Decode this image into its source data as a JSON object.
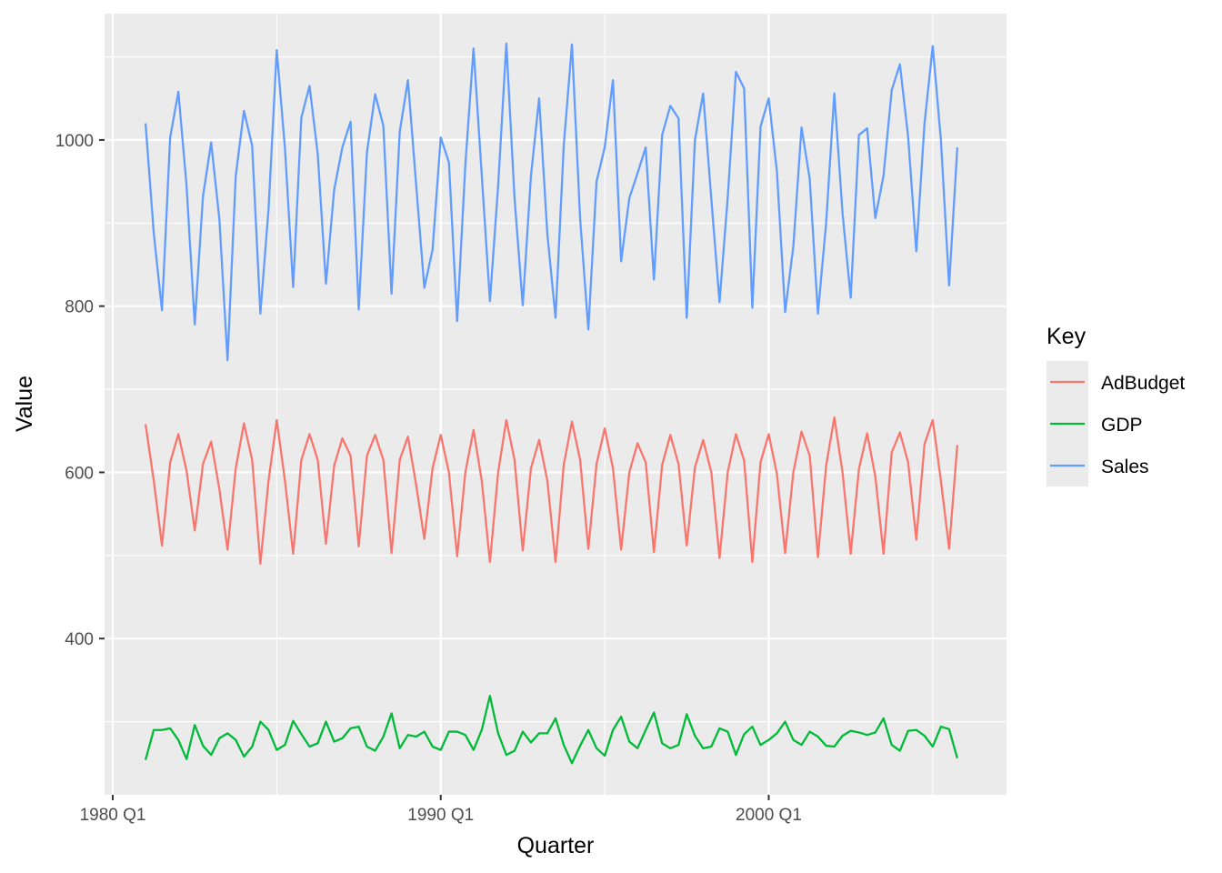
{
  "chart_data": {
    "type": "line",
    "xlabel": "Quarter",
    "ylabel": "Value",
    "x_start": "1981 Q1",
    "x_end": "2005 Q4",
    "xlim": [
      "1979 Q4",
      "2007 Q2"
    ],
    "ylim": [
      212,
      1152
    ],
    "x_ticks": [
      "1980 Q1",
      "1990 Q1",
      "2000 Q1"
    ],
    "y_ticks": [
      400,
      600,
      800,
      1000
    ],
    "grid": true,
    "legend": {
      "title": "Key",
      "position": "right"
    },
    "series": [
      {
        "name": "AdBudget",
        "color": "#F8766D",
        "values": [
          658,
          590,
          512,
          612,
          646,
          602,
          530,
          610,
          637,
          580,
          507,
          605,
          659,
          615,
          490,
          590,
          663,
          590,
          502,
          615,
          646,
          615,
          514,
          608,
          641,
          620,
          511,
          620,
          645,
          615,
          503,
          615,
          643,
          585,
          520,
          605,
          645,
          600,
          499,
          600,
          651,
          590,
          492,
          600,
          663,
          615,
          506,
          605,
          639,
          590,
          492,
          609,
          661,
          615,
          508,
          610,
          653,
          605,
          507,
          600,
          635,
          612,
          504,
          609,
          645,
          610,
          512,
          606,
          639,
          600,
          497,
          600,
          646,
          614,
          492,
          612,
          646,
          598,
          503,
          600,
          649,
          620,
          498,
          608,
          666,
          600,
          502,
          604,
          647,
          595,
          502,
          624,
          648,
          612,
          519,
          634,
          663,
          590,
          508,
          633
        ]
      },
      {
        "name": "GDP",
        "color": "#00BA38",
        "values": [
          254,
          290,
          290,
          292,
          278,
          255,
          296,
          271,
          260,
          280,
          286,
          278,
          258,
          270,
          300,
          290,
          266,
          272,
          301,
          285,
          270,
          274,
          300,
          276,
          280,
          292,
          294,
          270,
          265,
          282,
          310,
          268,
          284,
          282,
          288,
          270,
          266,
          288,
          288,
          284,
          266,
          290,
          331,
          286,
          260,
          265,
          288,
          275,
          286,
          286,
          304,
          272,
          250,
          271,
          290,
          268,
          259,
          290,
          306,
          276,
          268,
          290,
          311,
          274,
          268,
          272,
          309,
          283,
          268,
          270,
          292,
          288,
          260,
          285,
          294,
          272,
          278,
          286,
          300,
          278,
          272,
          288,
          282,
          271,
          270,
          283,
          289,
          287,
          284,
          287,
          304,
          272,
          265,
          289,
          290,
          283,
          270,
          294,
          291,
          256
        ]
      },
      {
        "name": "Sales",
        "color": "#619CFF",
        "values": [
          1020,
          888,
          795,
          1003,
          1058,
          945,
          778,
          932,
          997,
          905,
          735,
          957,
          1035,
          993,
          791,
          917,
          1108,
          990,
          823,
          1027,
          1065,
          983,
          827,
          940,
          991,
          1022,
          796,
          985,
          1055,
          1017,
          815,
          1010,
          1072,
          946,
          822,
          868,
          1003,
          973,
          782,
          970,
          1110,
          958,
          806,
          945,
          1116,
          930,
          801,
          957,
          1050,
          887,
          786,
          993,
          1115,
          905,
          772,
          950,
          991,
          1072,
          854,
          930,
          960,
          991,
          832,
          1006,
          1041,
          1026,
          786,
          1000,
          1056,
          929,
          805,
          931,
          1082,
          1062,
          798,
          1016,
          1050,
          962,
          793,
          872,
          1015,
          953,
          791,
          900,
          1056,
          912,
          810,
          1006,
          1014,
          906,
          957,
          1060,
          1091,
          1004,
          866,
          1020,
          1113,
          1000,
          825,
          991
        ]
      }
    ]
  }
}
